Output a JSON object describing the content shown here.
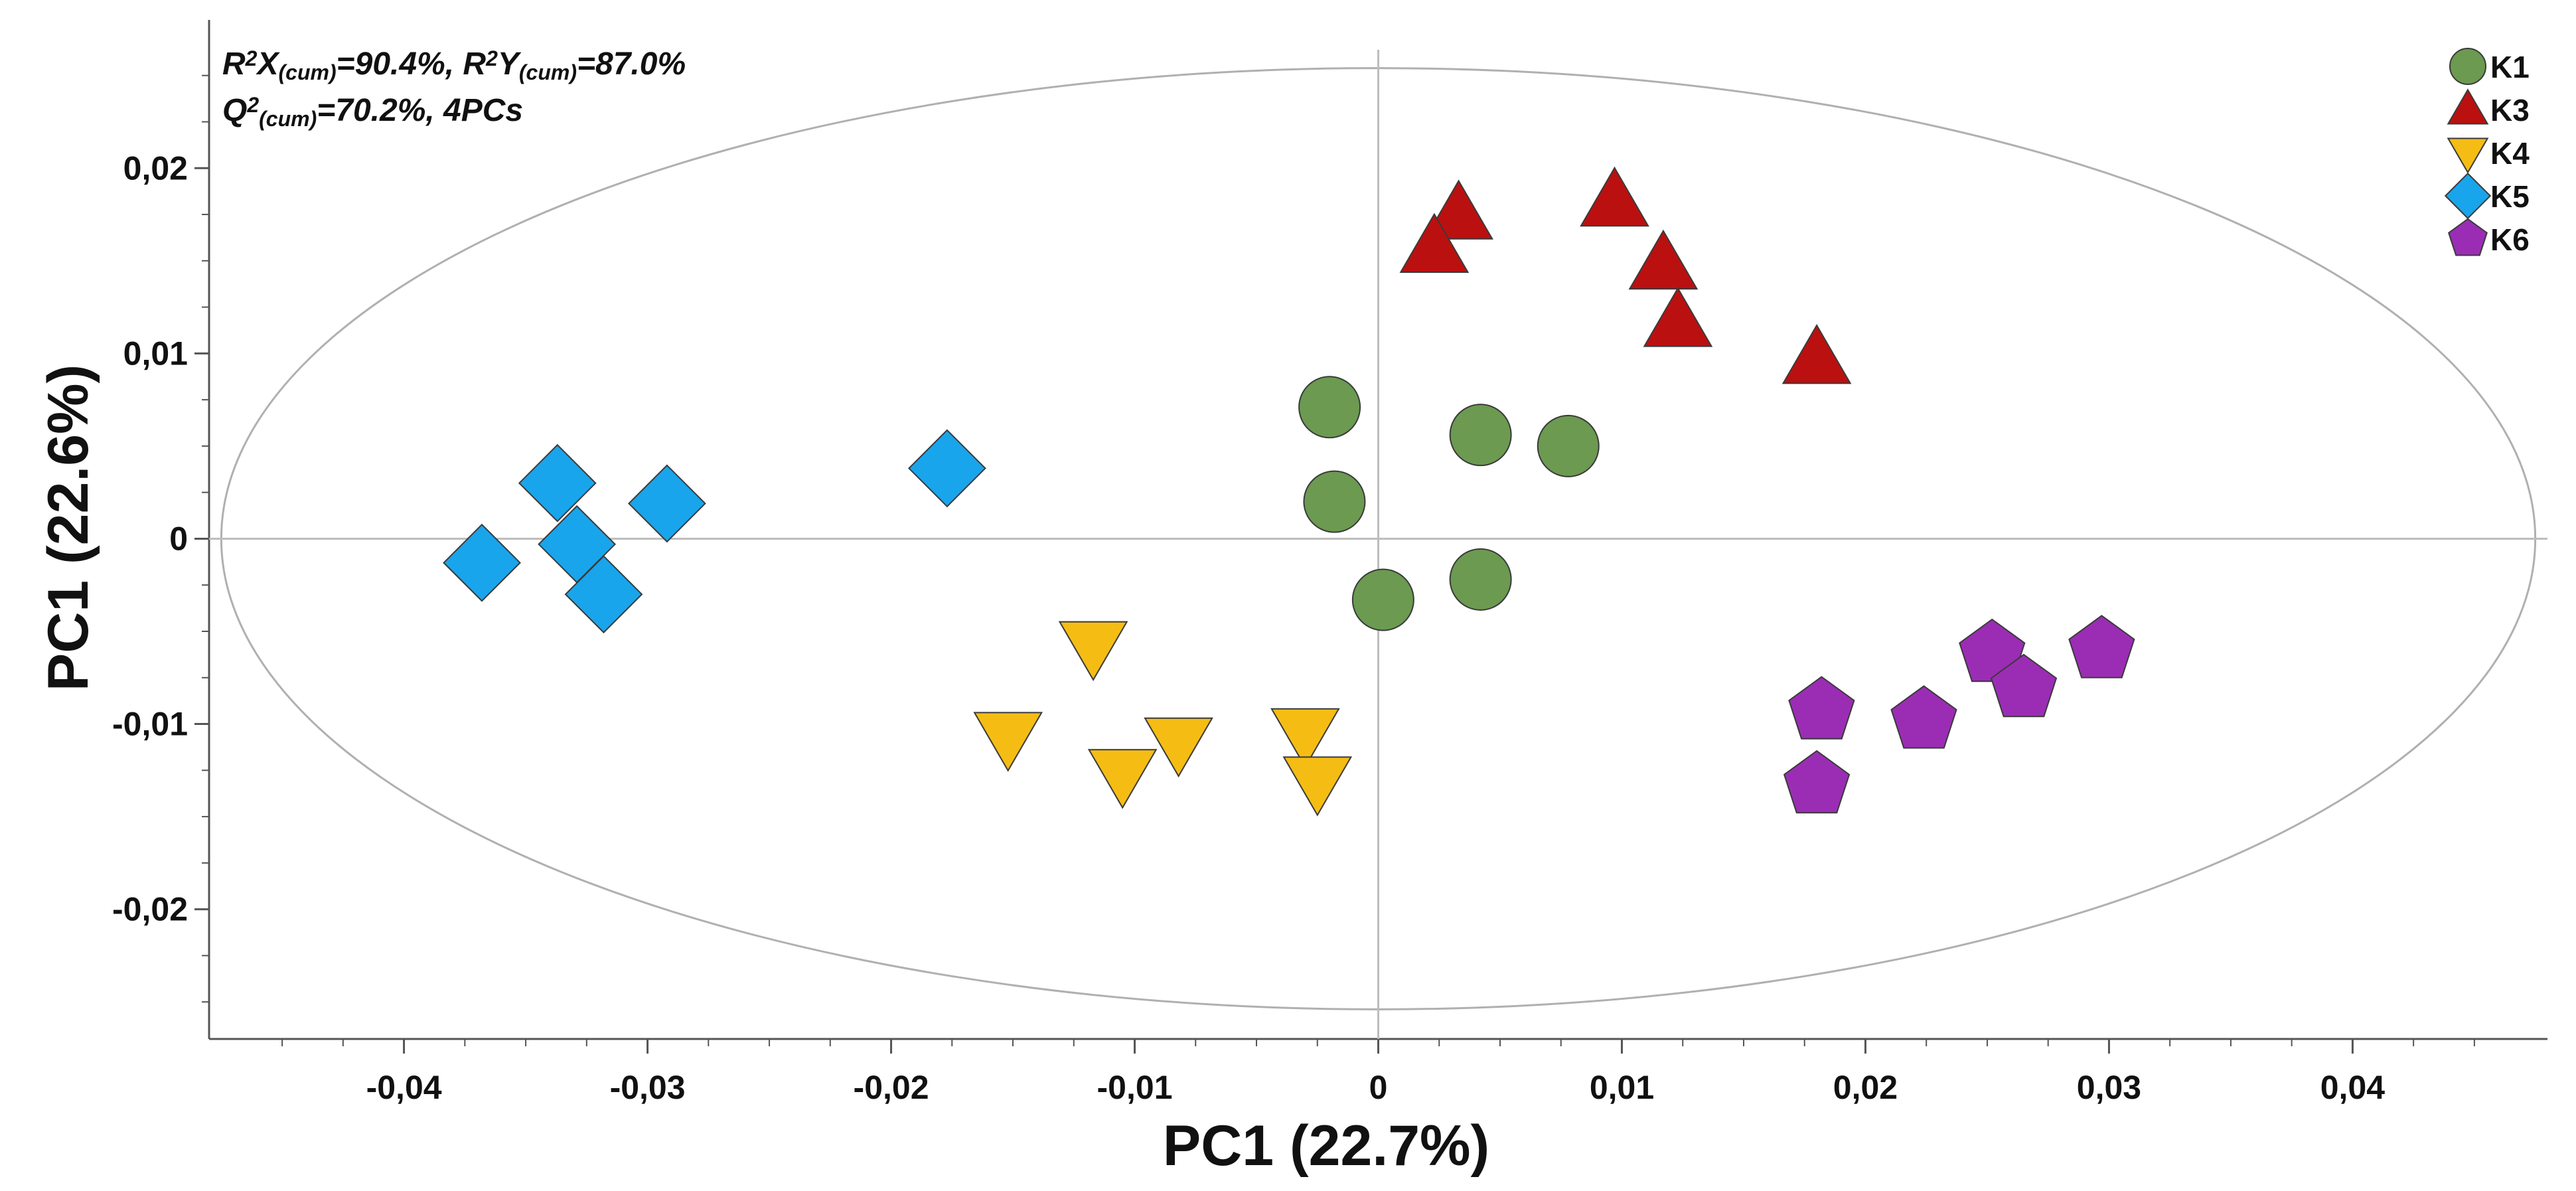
{
  "chart_data": {
    "type": "scatter",
    "title": "",
    "xlabel": "PC1 (22.7%)",
    "ylabel": "PC1 (22.6%)",
    "xlim": [
      -0.048,
      0.048
    ],
    "ylim": [
      -0.027,
      0.028
    ],
    "xticks": [
      -0.04,
      -0.03,
      -0.02,
      -0.01,
      0,
      0.01,
      0.02,
      0.03,
      0.04
    ],
    "xtick_labels": [
      "-0,04",
      "-0,03",
      "-0,02",
      "-0,01",
      "0",
      "0,01",
      "0,02",
      "0,03",
      "0,04"
    ],
    "yticks": [
      0.02,
      0.01,
      0,
      -0.01,
      -0.02
    ],
    "ytick_labels": [
      "0,02",
      "0,01",
      "0",
      "-0,01",
      "-0,02"
    ],
    "grid": false,
    "legend_position": "top-right",
    "ellipse": {
      "center": [
        0,
        0
      ],
      "semi_axis_x": 0.0475,
      "semi_axis_y": 0.0254
    },
    "annotation": {
      "line1": [
        {
          "t": "R",
          "s": "n"
        },
        {
          "t": "2",
          "s": "sup"
        },
        {
          "t": "X",
          "s": "n"
        },
        {
          "t": "(cum)",
          "s": "sub"
        },
        {
          "t": "=90.4%, R",
          "s": "n"
        },
        {
          "t": "2",
          "s": "sup"
        },
        {
          "t": "Y",
          "s": "n"
        },
        {
          "t": "(cum)",
          "s": "sub"
        },
        {
          "t": "=87.0%",
          "s": "n"
        }
      ],
      "line2": [
        {
          "t": "Q",
          "s": "n"
        },
        {
          "t": "2",
          "s": "sup"
        },
        {
          "t": "(cum)",
          "s": "sub"
        },
        {
          "t": "=70.2%, 4PCs",
          "s": "n"
        }
      ]
    },
    "series": [
      {
        "name": "K1",
        "marker": "circle",
        "color": "#6b9a50",
        "points": [
          [
            -0.002,
            0.0071
          ],
          [
            -0.0018,
            0.002
          ],
          [
            0.0042,
            0.0056
          ],
          [
            0.0078,
            0.005
          ],
          [
            0.0042,
            -0.0022
          ],
          [
            0.0002,
            -0.0033
          ]
        ]
      },
      {
        "name": "K3",
        "marker": "triangle-up",
        "color": "#bb1010",
        "points": [
          [
            0.0033,
            0.0175
          ],
          [
            0.0023,
            0.0157
          ],
          [
            0.0097,
            0.0182
          ],
          [
            0.0117,
            0.0148
          ],
          [
            0.0123,
            0.0117
          ],
          [
            0.018,
            0.0097
          ]
        ]
      },
      {
        "name": "K4",
        "marker": "triangle-down",
        "color": "#f5bd14",
        "points": [
          [
            -0.0117,
            -0.0058
          ],
          [
            -0.0152,
            -0.0107
          ],
          [
            -0.0105,
            -0.0127
          ],
          [
            -0.0082,
            -0.011
          ],
          [
            -0.003,
            -0.0105
          ],
          [
            -0.0025,
            -0.0131
          ]
        ]
      },
      {
        "name": "K5",
        "marker": "diamond",
        "color": "#19a5ec",
        "points": [
          [
            -0.0337,
            0.003
          ],
          [
            -0.0292,
            0.0019
          ],
          [
            -0.0368,
            -0.0013
          ],
          [
            -0.0329,
            -0.0003
          ],
          [
            -0.0318,
            -0.003
          ],
          [
            -0.0177,
            0.0038
          ]
        ]
      },
      {
        "name": "K6",
        "marker": "pentagon",
        "color": "#9b2db5",
        "points": [
          [
            0.0182,
            -0.0093
          ],
          [
            0.0224,
            -0.0098
          ],
          [
            0.0252,
            -0.0062
          ],
          [
            0.0265,
            -0.0081
          ],
          [
            0.0297,
            -0.006
          ],
          [
            0.018,
            -0.0133
          ]
        ]
      }
    ]
  }
}
